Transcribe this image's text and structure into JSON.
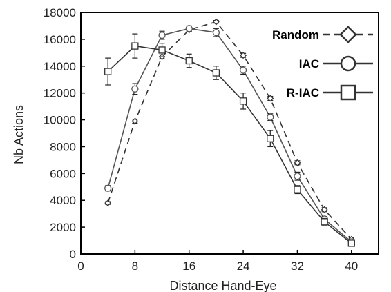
{
  "chart_data": {
    "type": "line",
    "title": "",
    "xlabel": "Distance Hand-Eye",
    "ylabel": "Nb Actions",
    "xlim": [
      0,
      44
    ],
    "ylim": [
      0,
      18000
    ],
    "xticks": [
      0,
      8,
      16,
      24,
      32,
      40
    ],
    "yticks": [
      0,
      2000,
      4000,
      6000,
      8000,
      10000,
      12000,
      14000,
      16000,
      18000
    ],
    "grid": false,
    "legend_position": "top-right",
    "x": [
      4,
      8,
      12,
      16,
      20,
      24,
      28,
      32,
      36,
      40
    ],
    "series": [
      {
        "name": "Random",
        "marker": "diamond",
        "line": "dashed",
        "color": "#333333",
        "values": [
          3800,
          9900,
          14700,
          16700,
          17300,
          14800,
          11600,
          6800,
          3300,
          1100
        ],
        "errors": [
          100,
          150,
          150,
          150,
          100,
          150,
          150,
          150,
          150,
          100
        ]
      },
      {
        "name": "IAC",
        "marker": "circle",
        "line": "solid",
        "color": "#555555",
        "values": [
          4900,
          12300,
          16300,
          16800,
          16500,
          13700,
          10200,
          5800,
          2600,
          900
        ],
        "errors": [
          200,
          400,
          300,
          200,
          300,
          300,
          250,
          300,
          200,
          150
        ]
      },
      {
        "name": "R-IAC",
        "marker": "square",
        "line": "solid",
        "color": "#333333",
        "values": [
          13600,
          15500,
          15200,
          14400,
          13500,
          11400,
          8600,
          4800,
          2400,
          800
        ],
        "errors": [
          1000,
          900,
          500,
          500,
          500,
          600,
          600,
          300,
          250,
          150
        ]
      }
    ]
  }
}
